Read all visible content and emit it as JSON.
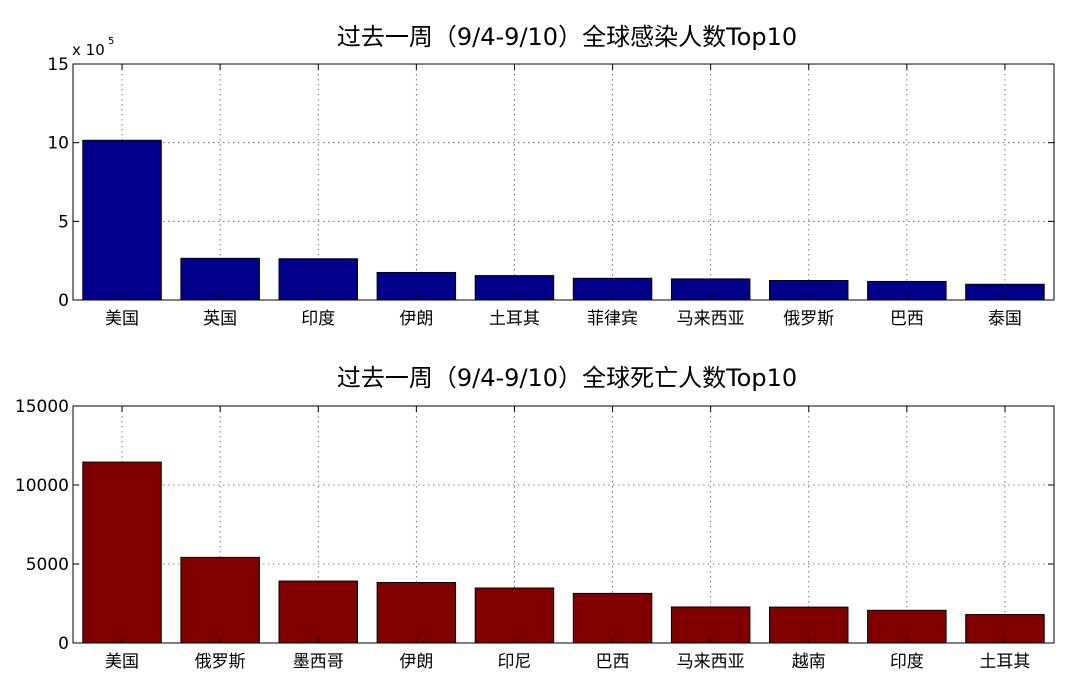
{
  "chart_data": [
    {
      "type": "bar",
      "title": "过去一周（9/4-9/10）全球感染人数Top10",
      "categories": [
        "美国",
        "英国",
        "印度",
        "伊朗",
        "土耳其",
        "菲律宾",
        "马来西亚",
        "俄罗斯",
        "巴西",
        "泰国"
      ],
      "values": [
        1015000,
        265000,
        262000,
        175000,
        155000,
        138000,
        134000,
        124000,
        118000,
        100000
      ],
      "ylim": [
        0,
        1500000
      ],
      "yticks": [
        0,
        500000,
        1000000,
        1500000
      ],
      "ytick_labels": [
        "0",
        "5",
        "10",
        "15"
      ],
      "multiplier_base": "x 10",
      "multiplier_exp": "5",
      "color": "#00008B",
      "grid": true,
      "xlabel": "",
      "ylabel": ""
    },
    {
      "type": "bar",
      "title": "过去一周（9/4-9/10）全球死亡人数Top10",
      "categories": [
        "美国",
        "俄罗斯",
        "墨西哥",
        "伊朗",
        "印尼",
        "巴西",
        "马来西亚",
        "越南",
        "印度",
        "土耳其"
      ],
      "values": [
        11450,
        5420,
        3920,
        3830,
        3480,
        3140,
        2280,
        2270,
        2070,
        1800
      ],
      "ylim": [
        0,
        15000
      ],
      "yticks": [
        0,
        5000,
        10000,
        15000
      ],
      "ytick_labels": [
        "0",
        "5000",
        "10000",
        "15000"
      ],
      "color": "#800000",
      "grid": true,
      "xlabel": "",
      "ylabel": ""
    }
  ]
}
